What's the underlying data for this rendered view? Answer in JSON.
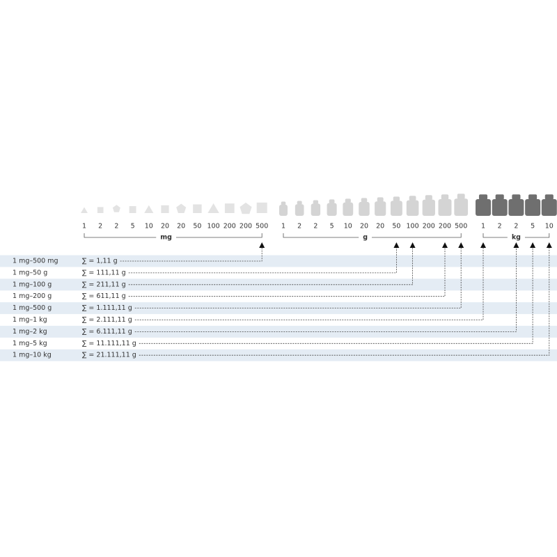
{
  "groups": [
    {
      "unit": "mg",
      "weights": [
        "1",
        "2",
        "2",
        "5",
        "10",
        "20",
        "20",
        "50",
        "100",
        "200",
        "200",
        "500"
      ]
    },
    {
      "unit": "g",
      "weights": [
        "1",
        "2",
        "2",
        "5",
        "10",
        "20",
        "20",
        "50",
        "100",
        "200",
        "200",
        "500"
      ]
    },
    {
      "unit": "kg",
      "weights": [
        "1",
        "2",
        "2",
        "5",
        "10"
      ]
    }
  ],
  "rows": [
    {
      "range": "1 mg–500 mg",
      "sum": "∑ = 1,11 g"
    },
    {
      "range": "1 mg–50 g",
      "sum": "∑ = 111,11 g"
    },
    {
      "range": "1 mg–100 g",
      "sum": "∑ = 211,11 g"
    },
    {
      "range": "1 mg–200 g",
      "sum": "∑ = 611,11 g"
    },
    {
      "range": "1 mg–500 g",
      "sum": "∑ = 1.111,11 g"
    },
    {
      "range": "1 mg–1 kg",
      "sum": "∑ = 2.111,11 g"
    },
    {
      "range": "1 mg–2 kg",
      "sum": "∑ = 6.111,11 g"
    },
    {
      "range": "1 mg–5 kg",
      "sum": "∑ = 11.111,11 g"
    },
    {
      "range": "1 mg–10 kg",
      "sum": "∑ = 21.111,11 g"
    }
  ]
}
